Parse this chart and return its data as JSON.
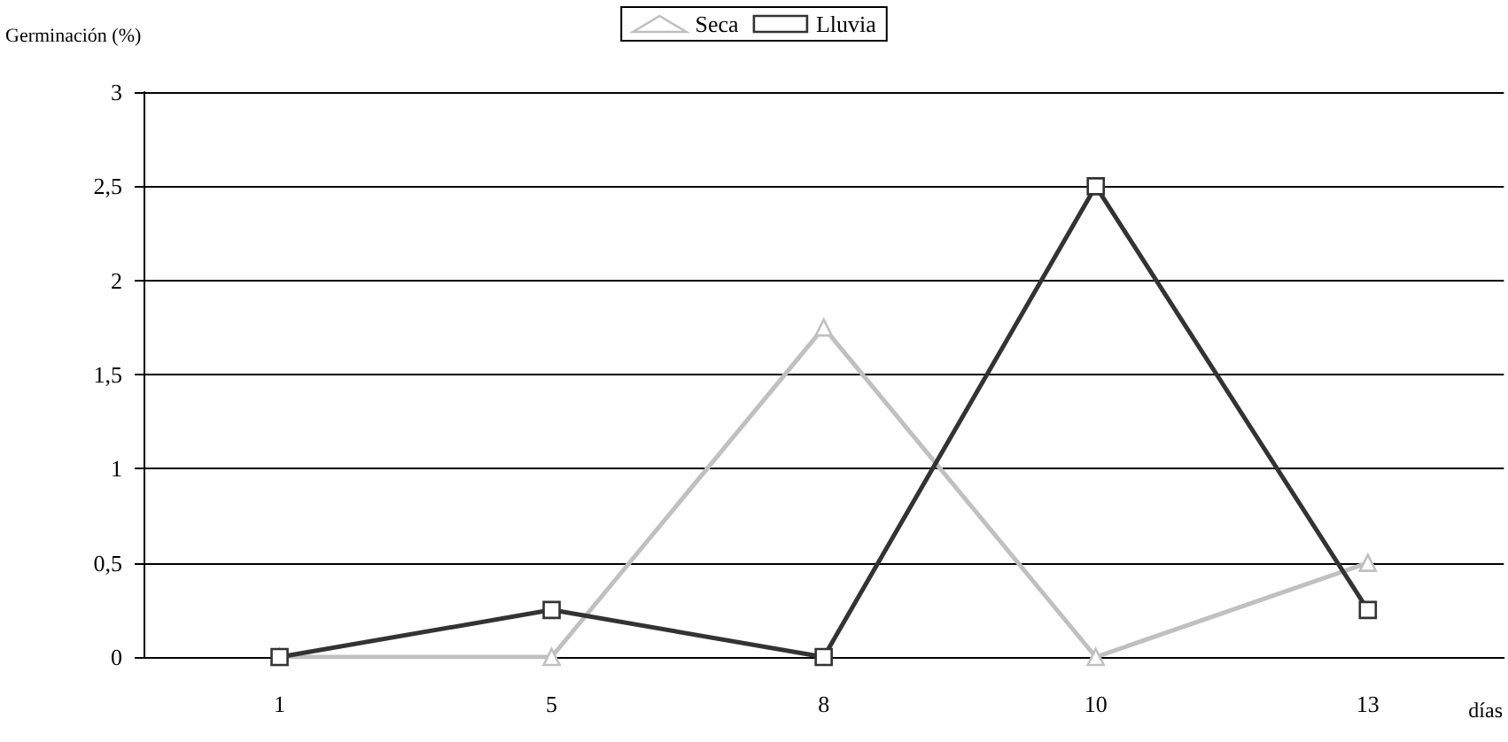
{
  "chart_data": {
    "type": "line",
    "ylabel": "Germinación (%)",
    "xlabel": "días",
    "categories": [
      "1",
      "5",
      "8",
      "10",
      "13"
    ],
    "series": [
      {
        "name": "Seca",
        "color": "#c0c0c0",
        "marker": "triangle",
        "values": [
          0,
          0,
          1.75,
          0,
          0.5
        ]
      },
      {
        "name": "Lluvia",
        "color": "#333333",
        "marker": "square",
        "values": [
          0,
          0.25,
          0,
          2.5,
          0.25
        ]
      }
    ],
    "ylim": [
      0,
      3
    ],
    "yticks": [
      {
        "value": 0,
        "label": "0"
      },
      {
        "value": 0.5,
        "label": "0,5"
      },
      {
        "value": 1,
        "label": "1"
      },
      {
        "value": 1.5,
        "label": "1,5"
      },
      {
        "value": 2,
        "label": "2"
      },
      {
        "value": 2.5,
        "label": "2,5"
      },
      {
        "value": 3,
        "label": "3"
      }
    ],
    "grid": "y",
    "legend": "top",
    "line_style": "solid"
  }
}
